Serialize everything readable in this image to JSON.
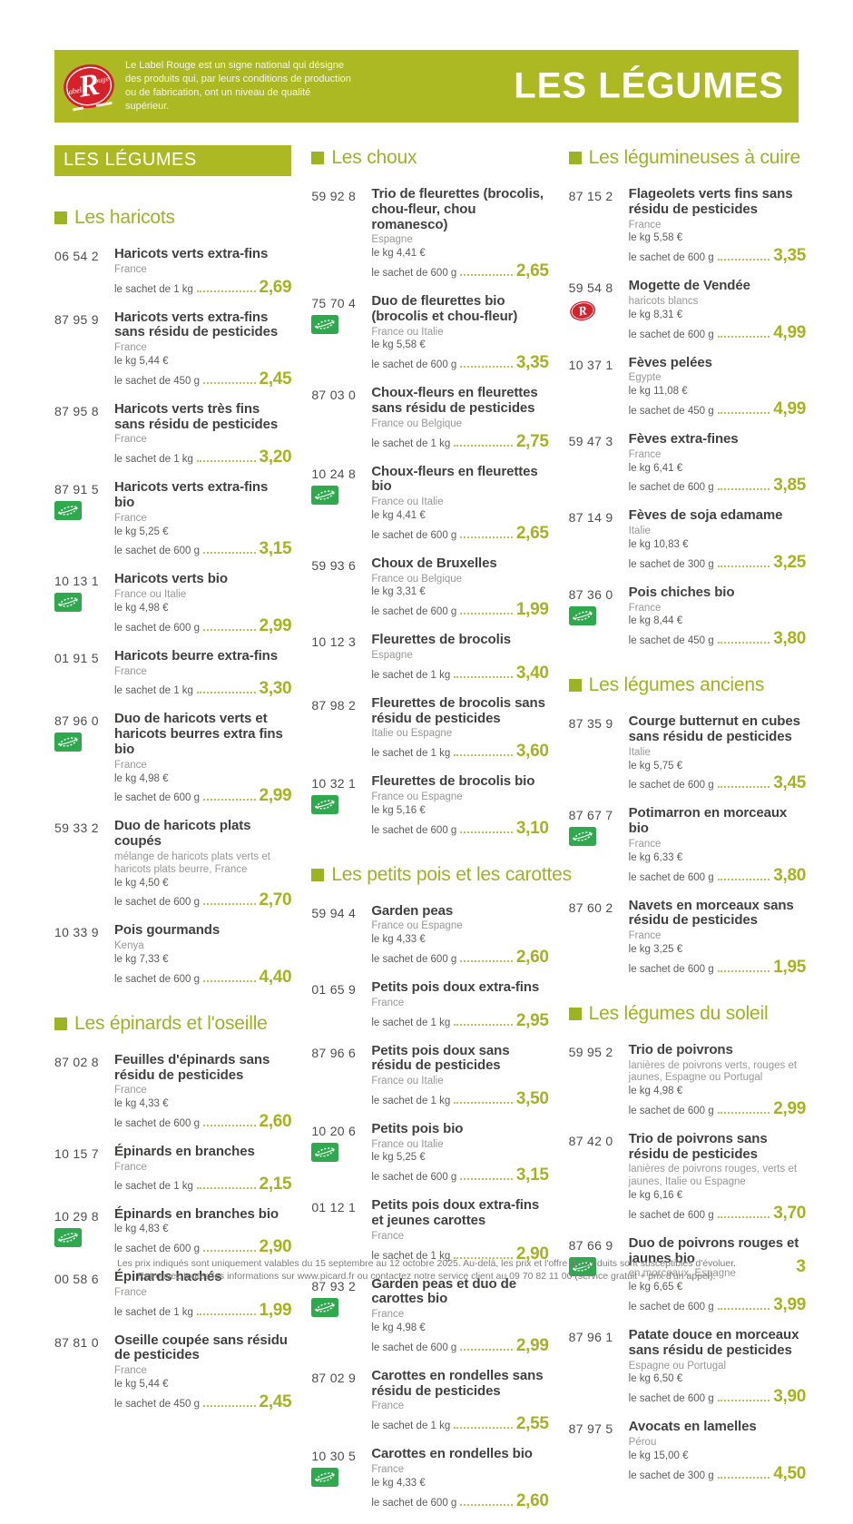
{
  "header": {
    "label_rouge_blurb": "Le Label Rouge est un signe national qui désigne des produits qui, par leurs conditions de production ou de fabrication, ont un niveau de qualité supérieur.",
    "title": "LES LÉGUMES"
  },
  "colors": {
    "accent_green": "#adb922",
    "heading_green": "#9cb322",
    "price_green": "#a5b31e",
    "bio_green": "#2fa94e",
    "label_rouge_red": "#d6212b"
  },
  "columns": [
    {
      "blocks": [
        {
          "type": "banner",
          "text": "LES LÉGUMES"
        },
        {
          "type": "section",
          "title": "Les haricots",
          "items": [
            {
              "code": "06 54 2",
              "icon": null,
              "name": "Haricots verts extra-fins",
              "origin": "France",
              "kg": null,
              "unit": "le sachet de 1 kg",
              "price": "2,69"
            },
            {
              "code": "87 95 9",
              "icon": null,
              "name": "Haricots verts extra-fins sans résidu de pesticides",
              "origin": "France",
              "kg": "le kg 5,44 €",
              "unit": "le sachet de 450 g",
              "price": "2,45"
            },
            {
              "code": "87 95 8",
              "icon": null,
              "name": "Haricots verts très fins sans résidu de pesticides",
              "origin": "France",
              "kg": null,
              "unit": "le sachet de 1 kg",
              "price": "3,20"
            },
            {
              "code": "87 91 5",
              "icon": "bio",
              "name": "Haricots verts extra-fins bio",
              "origin": "France",
              "kg": "le kg 5,25 €",
              "unit": "le sachet de 600 g",
              "price": "3,15"
            },
            {
              "code": "10 13 1",
              "icon": "bio",
              "name": "Haricots verts bio",
              "origin": "France ou Italie",
              "kg": "le kg 4,98 €",
              "unit": "le sachet de 600 g",
              "price": "2,99"
            },
            {
              "code": "01 91 5",
              "icon": null,
              "name": "Haricots beurre extra-fins",
              "origin": "France",
              "kg": null,
              "unit": "le sachet de 1 kg",
              "price": "3,30"
            },
            {
              "code": "87 96 0",
              "icon": "bio",
              "name": "Duo de haricots verts et haricots beurres extra fins bio",
              "origin": "France",
              "kg": "le kg 4,98 €",
              "unit": "le sachet de 600 g",
              "price": "2,99"
            },
            {
              "code": "59 33 2",
              "icon": null,
              "name": "Duo de haricots plats coupés",
              "origin": "mélange de haricots plats verts et haricots plats beurre, France",
              "kg": "le kg 4,50 €",
              "unit": "le sachet de 600 g",
              "price": "2,70"
            },
            {
              "code": "10 33 9",
              "icon": null,
              "name": "Pois gourmands",
              "origin": "Kenya",
              "kg": "le kg 7,33 €",
              "unit": "le sachet de 600 g",
              "price": "4,40"
            }
          ]
        },
        {
          "type": "section",
          "title": "Les épinards et l'oseille",
          "items": [
            {
              "code": "87 02 8",
              "icon": null,
              "name": "Feuilles d'épinards sans résidu de pesticides",
              "origin": "France",
              "kg": "le kg 4,33 €",
              "unit": "le sachet de 600 g",
              "price": "2,60"
            },
            {
              "code": "10 15 7",
              "icon": null,
              "name": "Épinards en branches",
              "origin": "France",
              "kg": null,
              "unit": "le sachet de 1 kg",
              "price": "2,15"
            },
            {
              "code": "10 29 8",
              "icon": "bio",
              "name": "Épinards en branches bio",
              "origin": null,
              "kg": "le kg 4,83 €",
              "unit": "le sachet de 600 g",
              "price": "2,90"
            },
            {
              "code": "00 58 6",
              "icon": null,
              "name": "Épinards hachés",
              "origin": "France",
              "kg": null,
              "unit": "le sachet de 1 kg",
              "price": "1,99"
            },
            {
              "code": "87 81 0",
              "icon": null,
              "name": "Oseille coupée sans résidu de pesticides",
              "origin": "France",
              "kg": "le kg 5,44 €",
              "unit": "le sachet de 450 g",
              "price": "2,45"
            }
          ]
        }
      ]
    },
    {
      "blocks": [
        {
          "type": "section",
          "title": "Les choux",
          "items": [
            {
              "code": "59 92 8",
              "icon": null,
              "name": "Trio de fleurettes (brocolis, chou-fleur, chou romanesco)",
              "origin": "Espagne",
              "kg": "le kg 4,41 €",
              "unit": "le sachet de 600 g",
              "price": "2,65"
            },
            {
              "code": "75 70 4",
              "icon": "bio",
              "name": "Duo de fleurettes bio (brocolis et chou-fleur)",
              "origin": "France ou Italie",
              "kg": "le kg 5,58 €",
              "unit": "le sachet de 600 g",
              "price": "3,35"
            },
            {
              "code": "87 03 0",
              "icon": null,
              "name": "Choux-fleurs en fleurettes sans résidu de pesticides",
              "origin": "France ou Belgique",
              "kg": null,
              "unit": "le sachet de 1 kg",
              "price": "2,75"
            },
            {
              "code": "10 24 8",
              "icon": "bio",
              "name": "Choux-fleurs en fleurettes bio",
              "origin": "France ou Italie",
              "kg": "le kg 4,41 €",
              "unit": "le sachet de 600 g",
              "price": "2,65"
            },
            {
              "code": "59 93 6",
              "icon": null,
              "name": "Choux de Bruxelles",
              "origin": "France ou Belgique",
              "kg": "le kg 3,31 €",
              "unit": "le sachet de 600 g",
              "price": "1,99"
            },
            {
              "code": "10 12 3",
              "icon": null,
              "name": "Fleurettes de brocolis",
              "origin": "Espagne",
              "kg": null,
              "unit": "le sachet de 1 kg",
              "price": "3,40"
            },
            {
              "code": "87 98 2",
              "icon": null,
              "name": "Fleurettes de brocolis sans résidu de pesticides",
              "origin": "Italie ou Espagne",
              "kg": null,
              "unit": "le sachet de 1 kg",
              "price": "3,60"
            },
            {
              "code": "10 32 1",
              "icon": "bio",
              "name": "Fleurettes de brocolis bio",
              "origin": "France ou Espagne",
              "kg": "le kg 5,16 €",
              "unit": "le sachet de 600 g",
              "price": "3,10"
            }
          ]
        },
        {
          "type": "section",
          "title": "Les petits pois et les carottes",
          "items": [
            {
              "code": "59 94 4",
              "icon": null,
              "name": "Garden peas",
              "origin": "France ou Espagne",
              "kg": "le kg 4,33 €",
              "unit": "le sachet de 600 g",
              "price": "2,60"
            },
            {
              "code": "01 65 9",
              "icon": null,
              "name": "Petits pois doux extra-fins",
              "origin": "France",
              "kg": null,
              "unit": "le sachet de 1 kg",
              "price": "2,95"
            },
            {
              "code": "87 96 6",
              "icon": null,
              "name": "Petits pois doux sans résidu de pesticides",
              "origin": "France ou Italie",
              "kg": null,
              "unit": "le sachet de 1 kg",
              "price": "3,50"
            },
            {
              "code": "10 20 6",
              "icon": "bio",
              "name": "Petits pois bio",
              "origin": "France ou Italie",
              "kg": "le kg 5,25 €",
              "unit": "le sachet de 600 g",
              "price": "3,15"
            },
            {
              "code": "01 12 1",
              "icon": null,
              "name": "Petits pois doux extra-fins et jeunes carottes",
              "origin": "France",
              "kg": null,
              "unit": "le sachet de 1 kg",
              "price": "2,90"
            },
            {
              "code": "87 93 2",
              "icon": "bio",
              "name": "Garden peas et duo de carottes bio",
              "origin": "France",
              "kg": "le kg 4,98 €",
              "unit": "le sachet de 600 g",
              "price": "2,99"
            },
            {
              "code": "87 02 9",
              "icon": null,
              "name": "Carottes en rondelles sans résidu de pesticides",
              "origin": "France",
              "kg": null,
              "unit": "le sachet de 1 kg",
              "price": "2,55"
            },
            {
              "code": "10 30 5",
              "icon": "bio",
              "name": "Carottes en rondelles bio",
              "origin": "France",
              "kg": "le kg 4,33 €",
              "unit": "le sachet de 600 g",
              "price": "2,60"
            }
          ]
        }
      ]
    },
    {
      "blocks": [
        {
          "type": "section",
          "title": "Les légumineuses à cuire",
          "items": [
            {
              "code": "87 15 2",
              "icon": null,
              "name": "Flageolets verts fins sans résidu de pesticides",
              "origin": "France",
              "kg": "le kg 5,58 €",
              "unit": "le sachet de 600 g",
              "price": "3,35"
            },
            {
              "code": "59 54 8",
              "icon": "label-rouge",
              "name": "Mogette de Vendée",
              "origin": "haricots blancs",
              "kg": "le kg 8,31 €",
              "unit": "le sachet de 600 g",
              "price": "4,99"
            },
            {
              "code": "10 37 1",
              "icon": null,
              "name": "Fèves pelées",
              "origin": "Egypte",
              "kg": "le kg 11,08 €",
              "unit": "le sachet de 450 g",
              "price": "4,99"
            },
            {
              "code": "59 47 3",
              "icon": null,
              "name": "Fèves extra-fines",
              "origin": "France",
              "kg": "le kg 6,41 €",
              "unit": "le sachet de 600 g",
              "price": "3,85"
            },
            {
              "code": "87 14 9",
              "icon": null,
              "name": "Fèves de soja edamame",
              "origin": "Italie",
              "kg": "le kg 10,83 €",
              "unit": "le sachet de 300 g",
              "price": "3,25"
            },
            {
              "code": "87 36 0",
              "icon": "bio",
              "name": "Pois chiches bio",
              "origin": "France",
              "kg": "le kg 8,44 €",
              "unit": "le sachet de 450 g",
              "price": "3,80"
            }
          ]
        },
        {
          "type": "section",
          "title": "Les légumes anciens",
          "items": [
            {
              "code": "87 35 9",
              "icon": null,
              "name": "Courge butternut en cubes sans résidu de pesticides",
              "origin": "Italie",
              "kg": "le kg 5,75 €",
              "unit": "le sachet de 600 g",
              "price": "3,45"
            },
            {
              "code": "87 67 7",
              "icon": "bio",
              "name": "Potimarron en morceaux bio",
              "origin": "France",
              "kg": "le kg 6,33 €",
              "unit": "le sachet de 600 g",
              "price": "3,80"
            },
            {
              "code": "87 60 2",
              "icon": null,
              "name": "Navets en morceaux sans résidu de pesticides",
              "origin": "France",
              "kg": "le kg 3,25 €",
              "unit": "le sachet de 600 g",
              "price": "1,95"
            }
          ]
        },
        {
          "type": "section",
          "title": "Les légumes du soleil",
          "items": [
            {
              "code": "59 95 2",
              "icon": null,
              "name": "Trio de poivrons",
              "origin": "lanières de poivrons verts, rouges et jaunes, Espagne ou Portugal",
              "kg": "le kg 4,98 €",
              "unit": "le sachet de 600 g",
              "price": "2,99"
            },
            {
              "code": "87 42 0",
              "icon": null,
              "name": "Trio de poivrons sans résidu de pesticides",
              "origin": "lanières de poivrons rouges, verts et jaunes, Italie ou Espagne",
              "kg": "le kg 6,16 €",
              "unit": "le sachet de 600 g",
              "price": "3,70"
            },
            {
              "code": "87 66 9",
              "icon": "bio",
              "name": "Duo de poivrons rouges et jaunes bio",
              "origin": "en morceaux, Espagne",
              "kg": "le kg 6,65 €",
              "unit": "le sachet de 600 g",
              "price": "3,99"
            },
            {
              "code": "87 96 1",
              "icon": null,
              "name": "Patate douce en morceaux sans résidu de pesticides",
              "origin": "Espagne ou Portugal",
              "kg": "le kg 6,50 €",
              "unit": "le sachet de 600 g",
              "price": "3,90"
            },
            {
              "code": "87 97 5",
              "icon": null,
              "name": "Avocats en lamelles",
              "origin": "Pérou",
              "kg": "le kg 15,00 €",
              "unit": "le sachet de 300 g",
              "price": "4,50"
            }
          ]
        }
      ]
    }
  ],
  "footer": {
    "line1": "Les prix indiqués sont uniquement valables du 15 septembre au 12 octobre 2025. Au-delà, les prix et l'offre de produits sont susceptibles d'évoluer.",
    "line2": "Retrouvez toutes les informations sur www.picard.fr ou contactez notre service client au 09 70 82 11 00 (service gratuit + prix d'un appel).",
    "page_number": "3"
  }
}
